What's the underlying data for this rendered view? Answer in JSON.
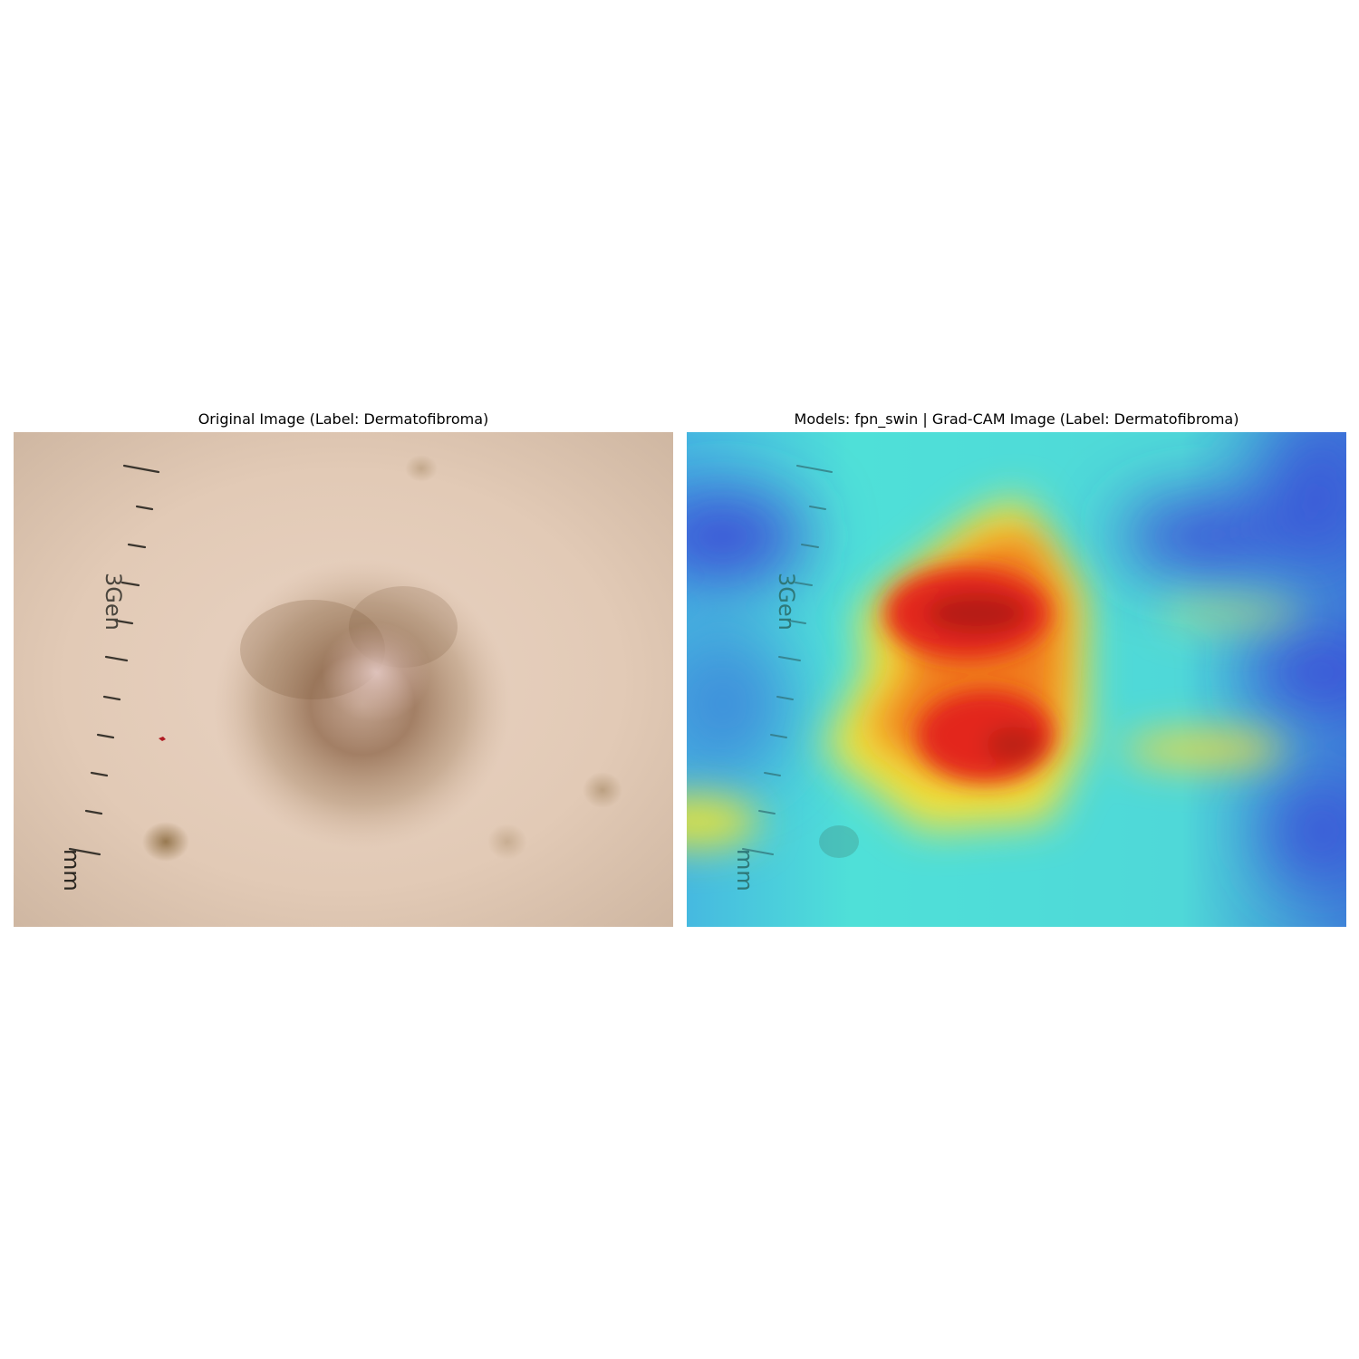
{
  "figure": {
    "left_panel": {
      "title": "Original Image (Label: Dermatofibroma)"
    },
    "right_panel": {
      "title": "Models: fpn_swin | Grad-CAM Image (Label: Dermatofibroma)"
    },
    "ruler": {
      "number_mark": "3Gen",
      "unit_mark": "mm"
    },
    "colors": {
      "skin": "#e3cbb8",
      "lesion": "#8a6648",
      "heat_hot": "#e02a1e",
      "heat_warm": "#f0e23a",
      "heat_mid": "#4de0d6",
      "heat_cool": "#3b78d8",
      "heat_cold": "#3b3fd8"
    }
  }
}
